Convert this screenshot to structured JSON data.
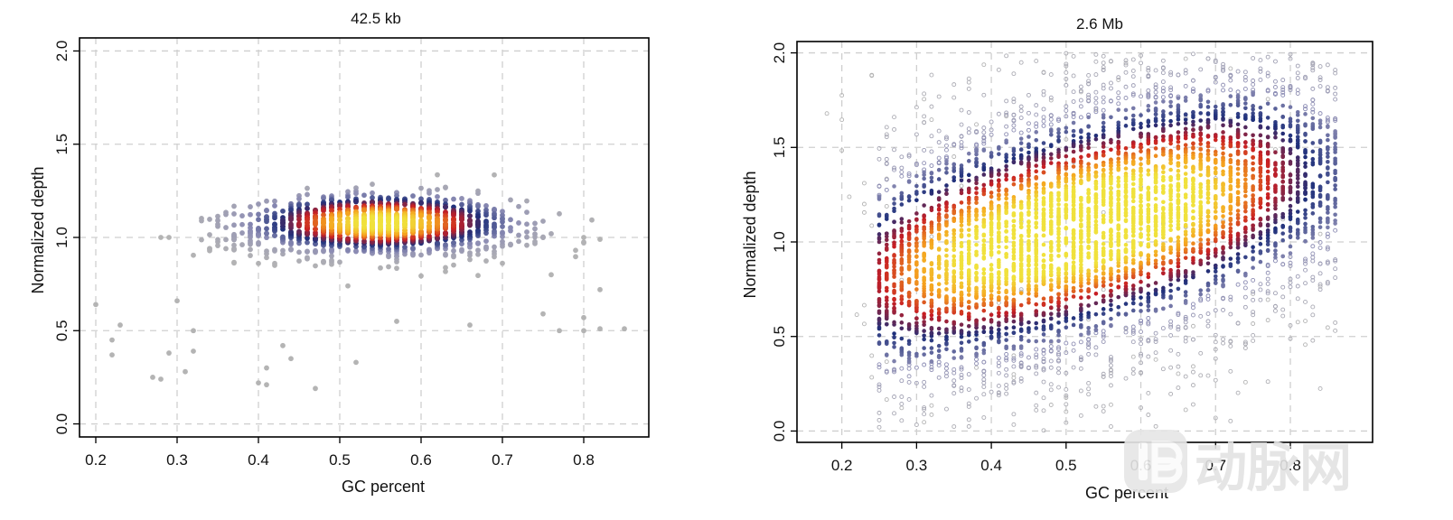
{
  "chart_data": [
    {
      "type": "scatter",
      "title": "42.5 kb",
      "xlabel": "GC percent",
      "ylabel": "Normalized depth",
      "xlim": [
        0.18,
        0.88
      ],
      "ylim": [
        -0.07,
        2.07
      ],
      "xticks": [
        0.2,
        0.3,
        0.4,
        0.5,
        0.6,
        0.7,
        0.8
      ],
      "xtick_labels": [
        "0.2",
        "0.3",
        "0.4",
        "0.5",
        "0.6",
        "0.7",
        "0.8"
      ],
      "yticks": [
        0.0,
        0.5,
        1.0,
        1.5,
        2.0
      ],
      "ytick_labels": [
        "0.0",
        "0.5",
        "1.0",
        "1.5",
        "2.0"
      ],
      "grid": true,
      "grid_style": "dashed",
      "density_colormap": [
        "#b4b4b4",
        "#8c8cb4",
        "#1e2f7a",
        "#c81e23",
        "#f5a01e",
        "#f0e13c"
      ],
      "density_center": {
        "x": 0.55,
        "y": 1.08
      },
      "marker": "filled-dot",
      "outliers": [
        {
          "x": 0.2,
          "y": 0.64
        },
        {
          "x": 0.22,
          "y": 0.45
        },
        {
          "x": 0.22,
          "y": 0.37
        },
        {
          "x": 0.23,
          "y": 0.53
        },
        {
          "x": 0.27,
          "y": 0.25
        },
        {
          "x": 0.28,
          "y": 0.24
        },
        {
          "x": 0.28,
          "y": 1.0
        },
        {
          "x": 0.29,
          "y": 1.0
        },
        {
          "x": 0.29,
          "y": 0.38
        },
        {
          "x": 0.3,
          "y": 0.66
        },
        {
          "x": 0.31,
          "y": 0.28
        },
        {
          "x": 0.32,
          "y": 0.5
        },
        {
          "x": 0.32,
          "y": 0.39
        },
        {
          "x": 0.4,
          "y": 0.22
        },
        {
          "x": 0.41,
          "y": 0.3
        },
        {
          "x": 0.41,
          "y": 0.21
        },
        {
          "x": 0.43,
          "y": 0.42
        },
        {
          "x": 0.44,
          "y": 0.35
        },
        {
          "x": 0.47,
          "y": 0.19
        },
        {
          "x": 0.52,
          "y": 0.33
        },
        {
          "x": 0.57,
          "y": 0.55
        },
        {
          "x": 0.66,
          "y": 0.53
        },
        {
          "x": 0.75,
          "y": 0.59
        },
        {
          "x": 0.76,
          "y": 0.8
        },
        {
          "x": 0.77,
          "y": 0.5
        },
        {
          "x": 0.8,
          "y": 0.57
        },
        {
          "x": 0.8,
          "y": 0.5
        },
        {
          "x": 0.82,
          "y": 0.72
        },
        {
          "x": 0.82,
          "y": 0.51
        },
        {
          "x": 0.85,
          "y": 0.51
        },
        {
          "x": 0.8,
          "y": 1.0
        },
        {
          "x": 0.82,
          "y": 0.99
        }
      ]
    },
    {
      "type": "scatter",
      "title": "2.6 Mb",
      "xlabel": "GC percent",
      "ylabel": "Normalized depth",
      "xlim": [
        0.14,
        0.91
      ],
      "ylim": [
        -0.06,
        2.06
      ],
      "xticks": [
        0.2,
        0.3,
        0.4,
        0.5,
        0.6,
        0.7,
        0.8
      ],
      "xtick_labels": [
        "0.2",
        "0.3",
        "0.4",
        "0.5",
        "0.6",
        "0.7",
        "0.8"
      ],
      "yticks": [
        0.0,
        0.5,
        1.0,
        1.5,
        2.0
      ],
      "ytick_labels": [
        "0.0",
        "0.5",
        "1.0",
        "1.5",
        "2.0"
      ],
      "grid": true,
      "grid_style": "dashed",
      "density_colormap": [
        "#b4b4b4",
        "#8c8cb4",
        "#1e2f7a",
        "#c81e23",
        "#f5a01e",
        "#f0e13c"
      ],
      "density_center_start": {
        "x": 0.36,
        "y": 0.92
      },
      "density_center_end": {
        "x": 0.66,
        "y": 1.22
      },
      "column_step": 0.01,
      "column_range": [
        0.25,
        0.86
      ],
      "marker": "open-circle"
    }
  ],
  "watermark": {
    "text": "动脉网",
    "icon": "dongmai-logo-icon"
  }
}
